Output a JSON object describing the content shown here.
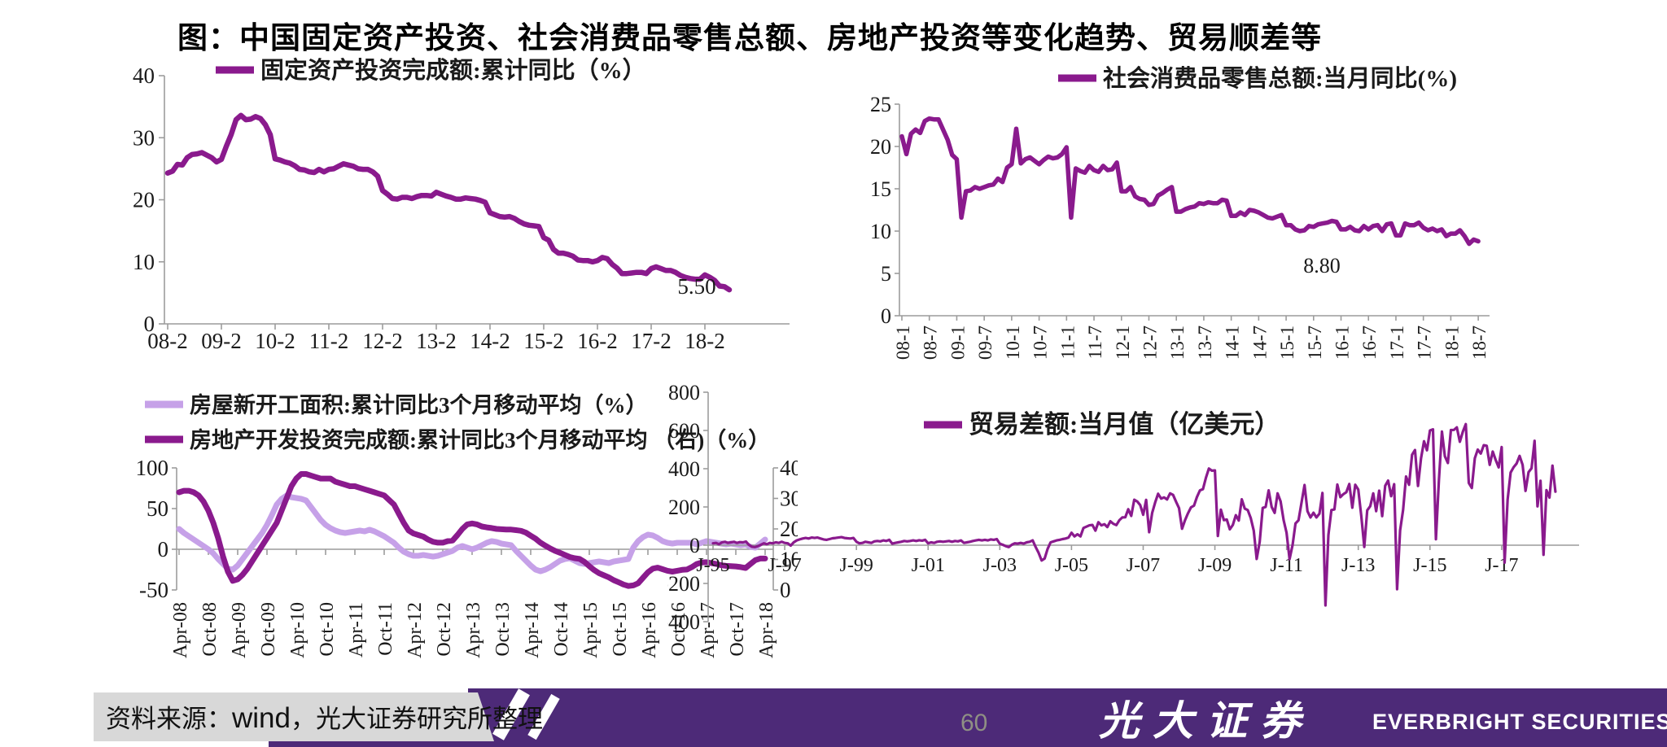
{
  "title": "图：中国固定资产投资、社会消费品零售总额、房地产投资等变化趋势、贸易顺差等",
  "footer": {
    "source_label": "资料来源：",
    "source_wind": "wind",
    "source_rest": "，光大证券研究所整理",
    "page_number": "60",
    "logo_cn": "光大证券",
    "logo_en": "EVERBRIGHT SECURITIES"
  },
  "colors": {
    "line_dark": "#8A1A8D",
    "line_light": "#C6A1E8",
    "axis": "#9C9C9C",
    "tick_text": "#1a1a1a",
    "negative_tick": "#C0504D",
    "footer_purple": "#4D2A78",
    "footer_gray": "#D8D8D8"
  },
  "chart_data": [
    {
      "type": "line",
      "name": "fixed-asset-investment",
      "legend": [
        {
          "label": "固定资产投资完成额:累计同比（%）",
          "color": "dark"
        }
      ],
      "ylim": [
        0,
        40
      ],
      "y_ticks": [
        0,
        10,
        20,
        30,
        40
      ],
      "x_labels": [
        "08-2",
        "09-2",
        "10-2",
        "11-2",
        "12-2",
        "13-2",
        "14-2",
        "15-2",
        "16-2",
        "17-2",
        "18-2"
      ],
      "x_label_idx": [
        0,
        11,
        22,
        33,
        44,
        55,
        66,
        77,
        88,
        99,
        110
      ],
      "end_label": "5.50",
      "series": [
        {
          "name": "固定资产投资完成额:累计同比",
          "axis": 0,
          "color": "dark",
          "values": [
            24.3,
            24.6,
            25.7,
            25.6,
            26.8,
            27.3,
            27.4,
            27.6,
            27.2,
            26.8,
            26.1,
            26.5,
            28.6,
            30.5,
            32.9,
            33.6,
            32.9,
            33.0,
            33.4,
            33.1,
            32.1,
            30.5,
            26.6,
            26.4,
            26.1,
            25.9,
            25.5,
            24.9,
            24.8,
            24.5,
            24.4,
            24.9,
            24.5,
            24.9,
            25.0,
            25.4,
            25.8,
            25.6,
            25.4,
            25.0,
            24.9,
            24.9,
            24.5,
            23.8,
            21.5,
            20.9,
            20.2,
            20.1,
            20.4,
            20.4,
            20.2,
            20.5,
            20.7,
            20.7,
            20.6,
            21.2,
            20.9,
            20.6,
            20.4,
            20.1,
            20.1,
            20.3,
            20.2,
            20.1,
            19.9,
            19.6,
            17.9,
            17.6,
            17.3,
            17.2,
            17.3,
            17.0,
            16.5,
            16.1,
            15.9,
            15.8,
            15.7,
            13.9,
            13.5,
            12.0,
            11.4,
            11.4,
            11.2,
            10.9,
            10.3,
            10.2,
            10.2,
            10.0,
            10.2,
            10.7,
            10.5,
            9.6,
            9.0,
            8.1,
            8.1,
            8.2,
            8.3,
            8.3,
            8.1,
            8.9,
            9.2,
            8.9,
            8.6,
            8.6,
            8.3,
            7.8,
            7.5,
            7.3,
            7.2,
            7.2,
            7.9,
            7.5,
            7.0,
            6.1,
            6.0,
            5.5
          ]
        }
      ]
    },
    {
      "type": "line",
      "name": "retail-sales",
      "legend": [
        {
          "label": "社会消费品零售总额:当月同比(%)",
          "color": "dark"
        }
      ],
      "ylim": [
        0,
        25
      ],
      "y_ticks": [
        0,
        5,
        10,
        15,
        20,
        25
      ],
      "x_labels": [
        "08-1",
        "08-7",
        "09-1",
        "09-7",
        "10-1",
        "10-7",
        "11-1",
        "11-7",
        "12-1",
        "12-7",
        "13-1",
        "13-7",
        "14-1",
        "14-7",
        "15-1",
        "15-7",
        "16-1",
        "16-7",
        "17-1",
        "17-7",
        "18-1",
        "18-7"
      ],
      "x_label_idx": [
        0,
        6,
        12,
        18,
        24,
        30,
        36,
        42,
        48,
        54,
        60,
        66,
        72,
        78,
        84,
        90,
        96,
        102,
        108,
        114,
        120,
        126
      ],
      "end_label": "8.80",
      "series": [
        {
          "name": "社会消费品零售总额:当月同比",
          "axis": 0,
          "color": "dark",
          "values": [
            21.2,
            19.1,
            21.5,
            22.0,
            21.6,
            23.0,
            23.3,
            23.2,
            23.2,
            22.0,
            20.8,
            19.0,
            18.5,
            11.6,
            14.7,
            14.8,
            15.2,
            15.0,
            15.2,
            15.4,
            15.5,
            16.2,
            15.8,
            17.5,
            17.9,
            22.1,
            18.0,
            18.5,
            18.7,
            18.3,
            17.9,
            18.4,
            18.8,
            18.6,
            18.7,
            19.1,
            19.9,
            11.6,
            17.4,
            17.1,
            16.9,
            17.7,
            17.2,
            17.0,
            17.7,
            17.2,
            17.3,
            18.1,
            14.7,
            14.7,
            15.2,
            14.1,
            13.8,
            13.7,
            13.1,
            13.2,
            14.2,
            14.5,
            14.9,
            15.2,
            12.3,
            12.3,
            12.6,
            12.8,
            12.9,
            13.3,
            13.2,
            13.4,
            13.3,
            13.3,
            13.7,
            13.6,
            11.8,
            11.8,
            12.2,
            11.9,
            12.5,
            12.4,
            12.2,
            11.9,
            11.6,
            11.5,
            11.7,
            11.9,
            10.7,
            10.7,
            10.2,
            10.0,
            10.1,
            10.6,
            10.5,
            10.8,
            10.9,
            11.0,
            11.2,
            11.1,
            10.2,
            10.2,
            10.5,
            10.1,
            10.0,
            10.6,
            10.2,
            10.6,
            10.7,
            10.0,
            10.8,
            10.9,
            9.5,
            9.5,
            10.9,
            10.7,
            10.7,
            11.0,
            10.4,
            10.1,
            10.3,
            10.0,
            10.2,
            9.4,
            9.7,
            9.7,
            10.1,
            9.4,
            8.5,
            9.0,
            8.8
          ]
        }
      ]
    },
    {
      "type": "line",
      "name": "real-estate",
      "legend": [
        {
          "label": "房屋新开工面积:累计同比3个月移动平均（%）",
          "color": "light"
        },
        {
          "label": "房地产开发投资完成额:累计同比3个月移动平均 （右)（%）",
          "color": "dark"
        }
      ],
      "ylim": [
        -50,
        100
      ],
      "ylim_right": [
        0,
        40
      ],
      "y_ticks": [
        -50,
        0,
        50,
        100
      ],
      "y_ticks_right": [
        0,
        10,
        20,
        30,
        40
      ],
      "x_labels": [
        "Apr-08",
        "Oct-08",
        "Apr-09",
        "Oct-09",
        "Apr-10",
        "Oct-10",
        "Apr-11",
        "Oct-11",
        "Apr-12",
        "Oct-12",
        "Apr-13",
        "Oct-13",
        "Apr-14",
        "Oct-14",
        "Apr-15",
        "Oct-15",
        "Apr-16",
        "Oct-16",
        "Apr-17",
        "Oct-17",
        "Apr-18"
      ],
      "x_label_idx": [
        0,
        6,
        12,
        18,
        24,
        30,
        36,
        42,
        48,
        54,
        60,
        66,
        72,
        78,
        84,
        90,
        96,
        102,
        108,
        114,
        120
      ],
      "end_label": "",
      "series": [
        {
          "name": "房屋新开工面积3个月移动平均",
          "axis": 0,
          "color": "light",
          "values": [
            25,
            20,
            16,
            12,
            8,
            4,
            0,
            -5,
            -12,
            -18,
            -24,
            -25,
            -20,
            -12,
            -4,
            4,
            12,
            20,
            30,
            42,
            55,
            62,
            66,
            64,
            63,
            62,
            60,
            52,
            44,
            36,
            30,
            26,
            23,
            21,
            20,
            21,
            22,
            23,
            22,
            24,
            22,
            19,
            16,
            12,
            8,
            2,
            -3,
            -6,
            -8,
            -8,
            -7,
            -8,
            -9,
            -8,
            -6,
            -4,
            -2,
            2,
            4,
            2,
            0,
            2,
            5,
            8,
            10,
            9,
            7,
            6,
            5,
            -2,
            -8,
            -14,
            -20,
            -25,
            -27,
            -25,
            -22,
            -18,
            -14,
            -12,
            -11,
            -14,
            -17,
            -18,
            -17,
            -16,
            -15,
            -16,
            -17,
            -15,
            -14,
            -13,
            -12,
            2,
            10,
            15,
            18,
            17,
            14,
            10,
            8,
            7,
            8,
            8,
            8,
            8,
            6,
            8,
            10,
            9,
            8,
            7,
            6,
            7,
            6,
            5,
            6,
            3,
            2,
            7,
            12
          ]
        },
        {
          "name": "房地产开发投资完成额3个月移动平均(右)",
          "axis": 1,
          "color": "dark",
          "values": [
            32,
            32.5,
            32.5,
            32,
            31,
            29,
            26,
            22,
            17,
            11,
            6,
            3,
            3.5,
            5,
            7,
            9.5,
            12,
            14.5,
            17,
            19.5,
            22,
            26,
            30,
            34,
            36.5,
            38,
            38,
            37.5,
            37,
            36.5,
            36.5,
            36.5,
            35.5,
            35,
            34.5,
            34,
            34,
            33.5,
            33,
            32.5,
            32,
            31.5,
            31,
            29.5,
            28,
            25,
            22,
            19.5,
            18.5,
            18,
            17.5,
            16.5,
            15.8,
            15.5,
            15.5,
            16,
            16.2,
            18,
            20,
            21.5,
            21.8,
            21.5,
            20.8,
            20.5,
            20.3,
            20,
            19.9,
            19.8,
            19.8,
            19.6,
            19.4,
            18.8,
            17.8,
            16.8,
            15.5,
            14.5,
            13.6,
            12.8,
            12.2,
            11.5,
            10.8,
            10.4,
            10.2,
            9.2,
            7.8,
            6.5,
            5.5,
            4.8,
            4.1,
            3.2,
            2.5,
            1.8,
            1.3,
            1.5,
            2.2,
            4,
            5.8,
            7,
            7.3,
            6.8,
            6.3,
            6,
            6.3,
            6.6,
            6.7,
            7.5,
            8.5,
            9,
            9.1,
            8.8,
            8.5,
            8.1,
            7.9,
            7.8,
            7.7,
            7.5,
            7.2,
            8.5,
            9.8,
            10.3,
            10.3
          ]
        }
      ]
    },
    {
      "type": "line",
      "name": "trade-balance",
      "legend": [
        {
          "label": "贸易差额:当月值（亿美元）",
          "color": "dark"
        }
      ],
      "ylim": [
        -400,
        800
      ],
      "y_ticks": [
        -400,
        -200,
        0,
        200,
        400,
        600,
        800
      ],
      "x_labels": [
        "J-95",
        "J-97",
        "J-99",
        "J-01",
        "J-03",
        "J-05",
        "J-07",
        "J-09",
        "J-11",
        "J-13",
        "J-15",
        "J-17"
      ],
      "x_label_idx": [
        0,
        24,
        48,
        72,
        96,
        120,
        144,
        168,
        192,
        216,
        240,
        264
      ],
      "end_label": "",
      "series": [
        {
          "name": "贸易差额:当月值(亿美元)",
          "axis": 0,
          "color": "dark",
          "values": [
            10,
            12,
            5,
            15,
            18,
            12,
            15,
            18,
            12,
            16,
            15,
            19,
            2,
            -8,
            -10,
            -5,
            2,
            10,
            5,
            12,
            10,
            15,
            12,
            18,
            12,
            10,
            -2,
            15,
            25,
            30,
            35,
            38,
            35,
            40,
            38,
            40,
            35,
            30,
            28,
            32,
            36,
            38,
            40,
            42,
            38,
            36,
            35,
            38,
            18,
            10,
            12,
            18,
            15,
            12,
            20,
            22,
            20,
            25,
            22,
            28,
            8,
            12,
            15,
            18,
            22,
            20,
            22,
            25,
            22,
            26,
            24,
            28,
            10,
            15,
            12,
            18,
            20,
            18,
            20,
            22,
            18,
            22,
            20,
            25,
            12,
            15,
            18,
            22,
            25,
            28,
            25,
            28,
            25,
            30,
            28,
            32,
            8,
            2,
            -5,
            -10,
            2,
            10,
            8,
            12,
            8,
            15,
            18,
            25,
            -10,
            -40,
            -80,
            -70,
            -20,
            15,
            20,
            25,
            28,
            32,
            35,
            40,
            65,
            46,
            57,
            46,
            90,
            97,
            104,
            106,
            76,
            120,
            104,
            110,
            95,
            125,
            112,
            105,
            130,
            145,
            146,
            188,
            153,
            238,
            229,
            210,
            159,
            237,
            68,
            169,
            224,
            269,
            244,
            250,
            239,
            271,
            263,
            227,
            194,
            86,
            131,
            167,
            198,
            207,
            252,
            287,
            293,
            352,
            401,
            390,
            391,
            48,
            186,
            131,
            134,
            83,
            106,
            157,
            129,
            240,
            191,
            184,
            142,
            76,
            -72,
            17,
            195,
            200,
            287,
            200,
            169,
            271,
            229,
            131,
            65,
            -73,
            1,
            114,
            130,
            223,
            315,
            178,
            145,
            170,
            145,
            165,
            273,
            -315,
            53,
            184,
            187,
            317,
            251,
            267,
            277,
            320,
            196,
            316,
            291,
            153,
            -9,
            182,
            204,
            271,
            178,
            285,
            152,
            311,
            338,
            256,
            319,
            -230,
            77,
            185,
            359,
            316,
            473,
            498,
            310,
            454,
            544,
            496,
            600,
            606,
            31,
            341,
            594,
            465,
            430,
            602,
            603,
            616,
            541,
            594,
            633,
            325,
            299,
            455,
            500,
            479,
            523,
            520,
            420,
            490,
            446,
            407,
            513,
            -91,
            239,
            380,
            408,
            427,
            467,
            420,
            284,
            382,
            402,
            546,
            203,
            337,
            -50,
            288,
            249,
            416,
            280
          ]
        }
      ]
    }
  ]
}
